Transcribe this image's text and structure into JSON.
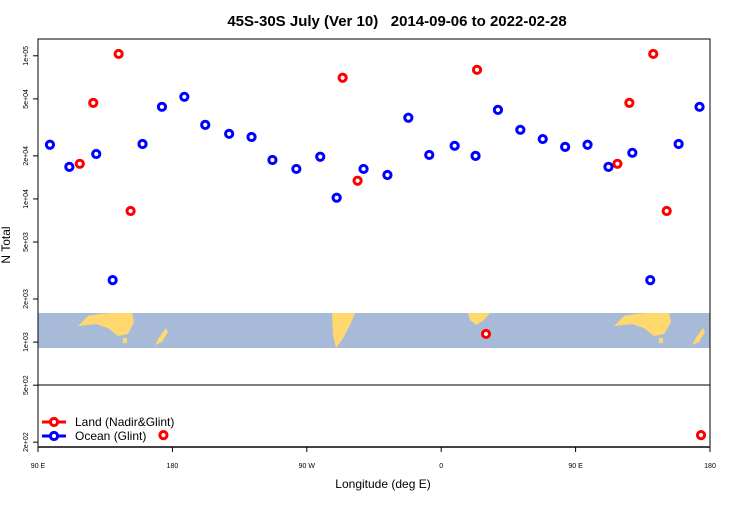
{
  "chart_data": {
    "type": "scatter",
    "title": "45S-30S July (Ver 10)   2014-09-06 to 2022-02-28",
    "xlabel": "Longitude (deg E)",
    "ylabel": "N Total",
    "xlim": [
      90,
      540
    ],
    "ylim": [
      185,
      131000
    ],
    "yscale": "log",
    "x_ticks": [
      {
        "v": 90,
        "label": "90 E"
      },
      {
        "v": 180,
        "label": "180"
      },
      {
        "v": 270,
        "label": "90 W"
      },
      {
        "v": 360,
        "label": "0"
      },
      {
        "v": 450,
        "label": "90 E"
      },
      {
        "v": 540,
        "label": "180"
      }
    ],
    "y_ticks": [
      {
        "v": 100000,
        "label": "1e+05"
      },
      {
        "v": 50000,
        "label": "5e+04"
      },
      {
        "v": 20000,
        "label": "2e+04"
      },
      {
        "v": 10000,
        "label": "1e+04"
      },
      {
        "v": 5000,
        "label": "5e+03"
      },
      {
        "v": 2000,
        "label": "2e+03"
      },
      {
        "v": 1000,
        "label": "1e+03"
      },
      {
        "v": 500,
        "label": "5e+02"
      },
      {
        "v": 200,
        "label": "2e+02"
      }
    ],
    "legend_position": "bottom-left",
    "series": [
      {
        "name": "Land (Nadir&Glint)",
        "color": "#ff0000",
        "points": [
          [
            118,
            17600
          ],
          [
            127,
            46900
          ],
          [
            144,
            103000
          ],
          [
            152,
            8240
          ],
          [
            174,
            224
          ],
          [
            294,
            70200
          ],
          [
            304,
            13400
          ],
          [
            384,
            79800
          ],
          [
            390,
            1140
          ],
          [
            478,
            17600
          ],
          [
            486,
            46900
          ],
          [
            502,
            103000
          ],
          [
            511,
            8240
          ],
          [
            534,
            224
          ]
        ]
      },
      {
        "name": "Ocean (Glint)",
        "color": "#0000ff",
        "points": [
          [
            98,
            23900
          ],
          [
            111,
            16750
          ],
          [
            129,
            20600
          ],
          [
            140,
            2710
          ],
          [
            160,
            24200
          ],
          [
            173,
            44000
          ],
          [
            188,
            51700
          ],
          [
            202,
            32900
          ],
          [
            218,
            28500
          ],
          [
            233,
            27100
          ],
          [
            247,
            18700
          ],
          [
            263,
            16200
          ],
          [
            279,
            19700
          ],
          [
            290,
            10200
          ],
          [
            308,
            16200
          ],
          [
            324,
            14700
          ],
          [
            338,
            36900
          ],
          [
            352,
            20300
          ],
          [
            369,
            23500
          ],
          [
            383,
            20000
          ],
          [
            398,
            41900
          ],
          [
            413,
            30400
          ],
          [
            428,
            26200
          ],
          [
            443,
            23100
          ],
          [
            458,
            23900
          ],
          [
            472,
            16750
          ],
          [
            488,
            21000
          ],
          [
            500,
            2710
          ],
          [
            519,
            24200
          ],
          [
            533,
            44000
          ]
        ]
      }
    ]
  }
}
